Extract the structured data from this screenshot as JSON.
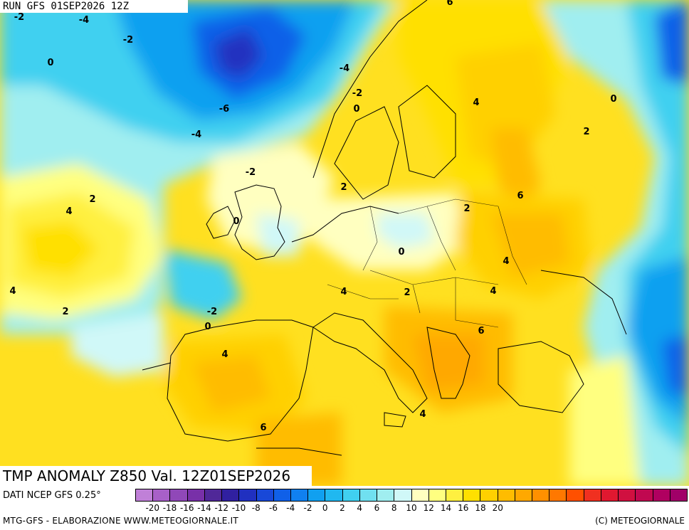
{
  "header": {
    "run": "RUN GFS 01SEP2026 12Z"
  },
  "map_title": "TMP ANOMALY Z850 Val. 12Z01SEP2026",
  "footer": {
    "source": "DATI NCEP GFS 0.25°",
    "credit_left": "MTG-GFS - ELABORAZIONE WWW.METEOGIORNALE.IT",
    "credit_right": "(C) METEOGIORNALE"
  },
  "scale": {
    "colors": [
      "#c080d8",
      "#a860c8",
      "#9048b8",
      "#7830a8",
      "#502898",
      "#3020a0",
      "#2030c0",
      "#1848d8",
      "#1060e8",
      "#1080f0",
      "#10a0f0",
      "#20b8f0",
      "#40d0f0",
      "#70e0f0",
      "#a0eef0",
      "#d0f8f8",
      "#ffffc0",
      "#ffff80",
      "#fff040",
      "#ffe000",
      "#ffd000",
      "#ffbc00",
      "#ffa800",
      "#ff9000",
      "#ff7800",
      "#ff5000",
      "#f03020",
      "#e01830",
      "#d01040",
      "#c00850",
      "#b00060",
      "#a00068"
    ],
    "ticks": [
      "-20",
      "-18",
      "-16",
      "-14",
      "-12",
      "-10",
      "-8",
      "-6",
      "-4",
      "-2",
      "0",
      "2",
      "4",
      "6",
      "8",
      "10",
      "12",
      "14",
      "16",
      "18",
      "20"
    ]
  },
  "contour_labels": [
    {
      "text": "-2"
    },
    {
      "text": "-4"
    },
    {
      "text": "-2"
    },
    {
      "text": "0"
    },
    {
      "text": "-6"
    },
    {
      "text": "-4"
    },
    {
      "text": "-4"
    },
    {
      "text": "-2"
    },
    {
      "text": "0"
    },
    {
      "text": "-2"
    },
    {
      "text": "2"
    },
    {
      "text": "4"
    },
    {
      "text": "0"
    },
    {
      "text": "4"
    },
    {
      "text": "2"
    },
    {
      "text": "-2"
    },
    {
      "text": "0"
    },
    {
      "text": "4"
    },
    {
      "text": "6"
    },
    {
      "text": "4"
    },
    {
      "text": "0"
    },
    {
      "text": "2"
    },
    {
      "text": "2"
    },
    {
      "text": "6"
    },
    {
      "text": "0"
    },
    {
      "text": "4"
    },
    {
      "text": "4"
    },
    {
      "text": "2"
    },
    {
      "text": "4"
    },
    {
      "text": "6"
    },
    {
      "text": "2"
    },
    {
      "text": "4"
    },
    {
      "text": "6"
    }
  ]
}
